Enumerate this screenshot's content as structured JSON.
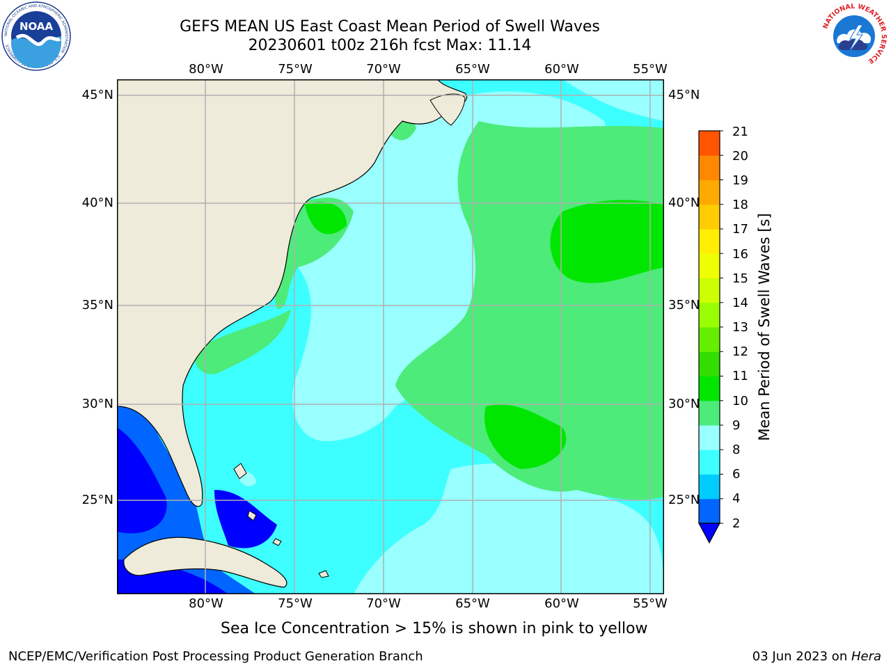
{
  "header": {
    "title_line1": "GEFS MEAN US East Coast Mean Period of Swell Waves",
    "title_line2": "20230601 t00z 216h fcst   Max: 11.14"
  },
  "logos": {
    "noaa_text": "NOAA",
    "noaa_ring_text": "NATIONAL OCEANIC AND ATMOSPHERIC ADMINISTRATION · U.S. DEPARTMENT OF COMMERCE",
    "nws_ring_text": "NATIONAL WEATHER SERVICE"
  },
  "map": {
    "lon_labels": [
      "80°W",
      "75°W",
      "70°W",
      "65°W",
      "60°W",
      "55°W"
    ],
    "lat_labels": [
      "45°N",
      "40°N",
      "35°N",
      "30°N",
      "25°N"
    ],
    "lon_range": [
      -85,
      -54.2
    ],
    "lat_range": [
      20.5,
      45.8
    ],
    "land_color": "#eeebdb",
    "grid_color": "#b0b0b0",
    "grid": true
  },
  "colorbar": {
    "label": "Mean Period of Swell Waves [s]",
    "ticks": [
      "2",
      "4",
      "6",
      "8",
      "9",
      "10",
      "11",
      "12",
      "13",
      "14",
      "15",
      "16",
      "17",
      "18",
      "19",
      "20",
      "21"
    ],
    "colors": [
      "#0066ff",
      "#00ccff",
      "#3dffff",
      "#99ffff",
      "#4deb7a",
      "#00e600",
      "#33dd00",
      "#66ee00",
      "#99ff00",
      "#ccff00",
      "#eeff00",
      "#ffee00",
      "#ffcc00",
      "#ffaa00",
      "#ff8800",
      "#ff5500",
      "#ff2200",
      "#ff0000"
    ],
    "under_color": "#0000ff"
  },
  "chart_data": {
    "type": "heatmap",
    "title": "GEFS MEAN US East Coast Mean Period of Swell Waves",
    "subtitle": "20230601 t00z 216h fcst   Max: 11.14",
    "max": 11.14,
    "units": "s",
    "levels": [
      2,
      4,
      6,
      8,
      9,
      10,
      11,
      12,
      13,
      14,
      15,
      16,
      17,
      18,
      19,
      20,
      21
    ],
    "xlim": [
      -85,
      -54.2
    ],
    "ylim": [
      20.5,
      45.8
    ]
  },
  "note": "Sea Ice Concentration > 15% is shown in pink to yellow",
  "footer": {
    "left": "NCEP/EMC/Verification Post Processing Product Generation Branch",
    "date": "03 Jun 2023 on ",
    "machine": "Hera"
  }
}
